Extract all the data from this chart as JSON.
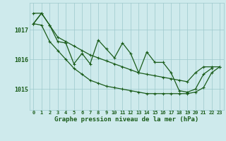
{
  "background_color": "#ceeaec",
  "grid_color": "#9dc8cc",
  "line_color": "#1a5c1a",
  "marker_color": "#1a5c1a",
  "xlabel": "Graphe pression niveau de la mer (hPa)",
  "xlabel_fontsize": 6.5,
  "ylabel_ticks": [
    1015,
    1016,
    1017
  ],
  "xlim": [
    -0.5,
    23.5
  ],
  "ylim": [
    1014.3,
    1017.9
  ],
  "xticks": [
    0,
    1,
    2,
    3,
    4,
    5,
    6,
    7,
    8,
    9,
    10,
    11,
    12,
    13,
    14,
    15,
    16,
    17,
    18,
    19,
    20,
    21,
    22,
    23
  ],
  "envelope_upper": [
    1017.55,
    1017.55,
    1017.15,
    1016.75,
    1016.6,
    1016.45,
    1016.3,
    1016.15,
    1016.05,
    1015.95,
    1015.85,
    1015.75,
    1015.65,
    1015.55,
    1015.5,
    1015.45,
    1015.4,
    1015.35,
    1015.3,
    1015.25,
    1015.55,
    1015.75,
    1015.75,
    1015.75
  ],
  "envelope_lower": [
    1017.2,
    1017.15,
    1016.6,
    1016.3,
    1016.0,
    1015.7,
    1015.5,
    1015.3,
    1015.2,
    1015.1,
    1015.05,
    1015.0,
    1014.95,
    1014.9,
    1014.85,
    1014.85,
    1014.85,
    1014.85,
    1014.85,
    1014.85,
    1014.9,
    1015.05,
    1015.55,
    1015.75
  ],
  "series_jagged": [
    1017.2,
    1017.55,
    1017.15,
    1016.6,
    1016.55,
    1015.85,
    1016.2,
    1015.85,
    1016.65,
    1016.35,
    1016.05,
    1016.55,
    1016.2,
    1015.55,
    1016.25,
    1015.9,
    1015.9,
    1015.55,
    1014.95,
    1014.9,
    1015.0,
    1015.5,
    1015.7,
    null
  ]
}
